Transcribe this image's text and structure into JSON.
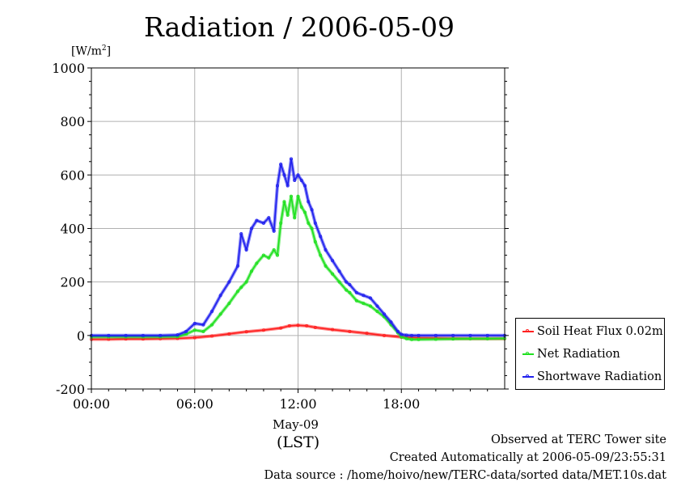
{
  "title": "Radiation / 2006-05-09",
  "unit_label": {
    "base": "[W/m",
    "sup": "2",
    "end": "]"
  },
  "footer": {
    "line1": "Observed at TERC Tower site",
    "line2": "Created Automatically at 2006-05-09/23:55:31",
    "line3": "Data source : /home/hoivo/new/TERC-data/sorted  data/MET.10s.dat"
  },
  "x_date_label": "May-09",
  "x_tz_label": "(LST)",
  "chart_data": {
    "type": "line",
    "title": "Radiation / 2006-05-09",
    "ylabel": "[W/m2]",
    "xlabel": "(LST)",
    "ylim": [
      -200,
      1000
    ],
    "xlim": [
      0,
      24
    ],
    "yticks": [
      -200,
      0,
      200,
      400,
      600,
      800,
      1000
    ],
    "ytick_labels": [
      "-200",
      "0",
      "200",
      "400",
      "600",
      "800",
      "1000"
    ],
    "xticks": [
      0,
      6,
      12,
      18
    ],
    "xtick_labels": [
      "00:00",
      "06:00",
      "12:00",
      "18:00"
    ],
    "grid": true,
    "legend_position": "right",
    "series": [
      {
        "name": "Soil Heat Flux 0.02m",
        "color": "#ff2020",
        "x": [
          0,
          1,
          2,
          3,
          4,
          5,
          6,
          7,
          8,
          9,
          10,
          11,
          11.5,
          12,
          12.5,
          13,
          14,
          15,
          16,
          17,
          18,
          19,
          20,
          21,
          22,
          23,
          24
        ],
        "y": [
          -14,
          -14,
          -13,
          -13,
          -12,
          -11,
          -8,
          -2,
          6,
          14,
          20,
          28,
          36,
          38,
          36,
          30,
          22,
          15,
          8,
          0,
          -6,
          -9,
          -10,
          -11,
          -12,
          -12,
          -12
        ]
      },
      {
        "name": "Net Radiation",
        "color": "#20e020",
        "x": [
          0,
          1,
          2,
          3,
          4,
          5,
          5.5,
          6,
          6.5,
          7,
          7.5,
          8,
          8.5,
          8.7,
          9,
          9.3,
          9.6,
          10,
          10.3,
          10.6,
          10.8,
          11,
          11.2,
          11.4,
          11.6,
          11.8,
          12,
          12.2,
          12.4,
          12.6,
          12.8,
          13,
          13.3,
          13.6,
          14,
          14.4,
          14.8,
          15,
          15.4,
          15.8,
          16.2,
          16.6,
          17,
          17.4,
          17.8,
          18,
          18.3,
          18.6,
          19,
          20,
          21,
          22,
          23,
          24
        ],
        "y": [
          -5,
          -5,
          -5,
          -5,
          -5,
          -4,
          5,
          20,
          15,
          40,
          80,
          120,
          165,
          180,
          200,
          240,
          270,
          300,
          290,
          320,
          300,
          420,
          500,
          450,
          520,
          440,
          520,
          480,
          460,
          420,
          400,
          350,
          300,
          260,
          230,
          200,
          170,
          160,
          130,
          120,
          110,
          90,
          70,
          40,
          10,
          -5,
          -12,
          -15,
          -15,
          -14,
          -13,
          -12,
          -12,
          -11
        ]
      },
      {
        "name": "Shortwave Radiation",
        "color": "#2020ee",
        "x": [
          0,
          1,
          2,
          3,
          4,
          5,
          5.5,
          6,
          6.5,
          7,
          7.5,
          8,
          8.5,
          8.7,
          9,
          9.3,
          9.6,
          10,
          10.3,
          10.6,
          10.8,
          11,
          11.2,
          11.4,
          11.6,
          11.8,
          12,
          12.2,
          12.4,
          12.6,
          12.8,
          13,
          13.3,
          13.6,
          14,
          14.4,
          14.8,
          15,
          15.4,
          15.8,
          16.2,
          16.6,
          17,
          17.4,
          17.8,
          18,
          18.3,
          18.6,
          19,
          20,
          21,
          22,
          23,
          24
        ],
        "y": [
          0,
          0,
          0,
          0,
          0,
          2,
          15,
          45,
          40,
          90,
          150,
          200,
          260,
          380,
          320,
          400,
          430,
          420,
          440,
          390,
          560,
          640,
          600,
          560,
          660,
          580,
          600,
          580,
          560,
          500,
          470,
          420,
          370,
          320,
          280,
          240,
          200,
          190,
          160,
          150,
          140,
          110,
          80,
          50,
          15,
          4,
          1,
          0,
          0,
          0,
          0,
          0,
          0,
          0
        ]
      }
    ]
  }
}
